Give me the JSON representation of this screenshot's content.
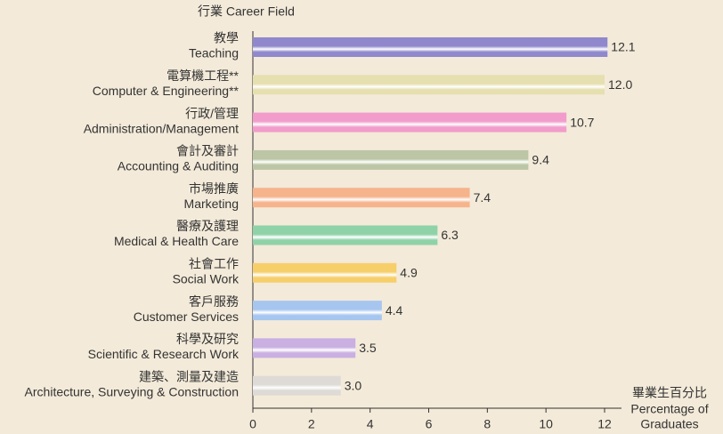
{
  "chart_data": {
    "type": "barh",
    "y_axis_title": "行業 Career Field",
    "x_axis_title": [
      "畢業生百分比",
      "Percentage of",
      "Graduates"
    ],
    "categories": [
      {
        "zh": "教學",
        "en": "Teaching"
      },
      {
        "zh": "電算機工程**",
        "en": "Computer & Engineering**"
      },
      {
        "zh": "行政/管理",
        "en": "Administration/Management"
      },
      {
        "zh": "會計及審計",
        "en": "Accounting & Auditing"
      },
      {
        "zh": "市場推廣",
        "en": "Marketing"
      },
      {
        "zh": "醫療及護理",
        "en": "Medical & Health Care"
      },
      {
        "zh": "社會工作",
        "en": "Social Work"
      },
      {
        "zh": "客戶服務",
        "en": "Customer Services"
      },
      {
        "zh": "科學及研究",
        "en": "Scientific & Research Work"
      },
      {
        "zh": "建築、測量及建造",
        "en": "Architecture, Surveying & Construction"
      }
    ],
    "values": [
      12.1,
      12.0,
      10.7,
      9.4,
      7.4,
      6.3,
      4.9,
      4.4,
      3.5,
      3.0
    ],
    "value_labels": [
      "12.1",
      "12.0",
      "10.7",
      "9.4",
      "7.4",
      "6.3",
      "4.9",
      "4.4",
      "3.5",
      "3.0"
    ],
    "colors": [
      "#8f88cc",
      "#e6dfb0",
      "#f29ccb",
      "#bcc6a6",
      "#f6b48c",
      "#8fd2a8",
      "#f7cf6a",
      "#a6c6f0",
      "#c9afe2",
      "#dedad6"
    ],
    "xlim": [
      0,
      12
    ],
    "xticks": [
      0,
      2,
      4,
      6,
      8,
      10,
      12
    ]
  }
}
